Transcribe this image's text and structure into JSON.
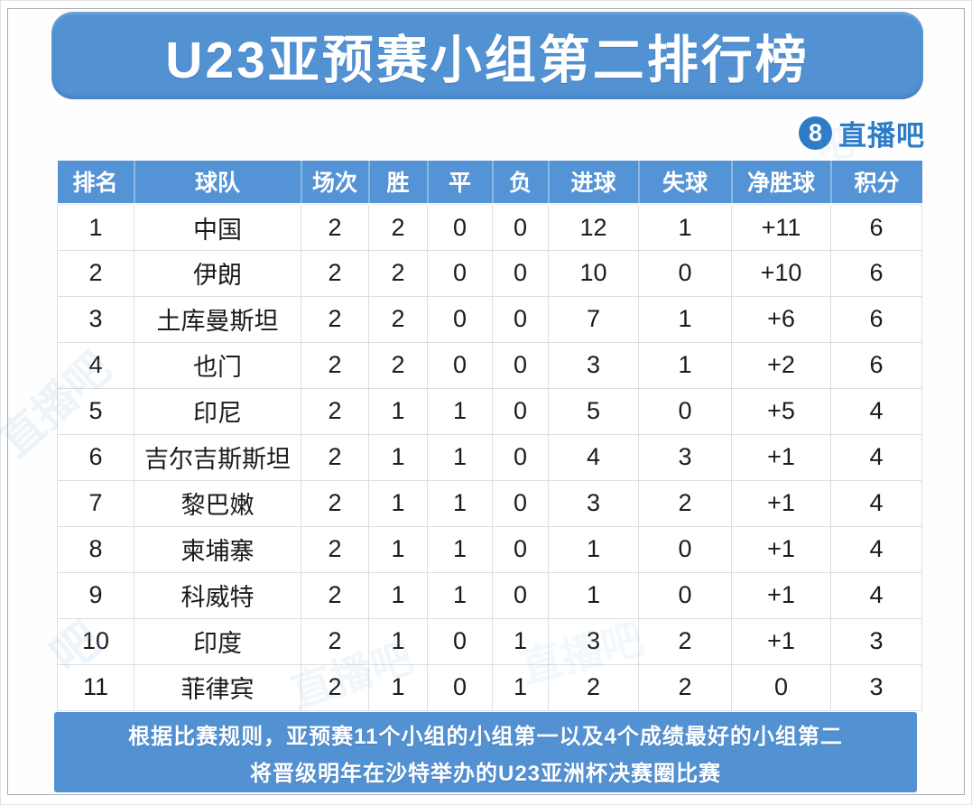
{
  "title": "U23亚预赛小组第二排行榜",
  "logo": {
    "badge": "8",
    "name": "直播吧"
  },
  "table": {
    "columns": [
      "排名",
      "球队",
      "场次",
      "胜",
      "平",
      "负",
      "进球",
      "失球",
      "净胜球",
      "积分"
    ],
    "rows": [
      {
        "rank": "1",
        "team": "中国",
        "played": "2",
        "win": "2",
        "draw": "0",
        "loss": "0",
        "gf": "12",
        "ga": "1",
        "gd": "+11",
        "pts": "6"
      },
      {
        "rank": "2",
        "team": "伊朗",
        "played": "2",
        "win": "2",
        "draw": "0",
        "loss": "0",
        "gf": "10",
        "ga": "0",
        "gd": "+10",
        "pts": "6"
      },
      {
        "rank": "3",
        "team": "土库曼斯坦",
        "played": "2",
        "win": "2",
        "draw": "0",
        "loss": "0",
        "gf": "7",
        "ga": "1",
        "gd": "+6",
        "pts": "6"
      },
      {
        "rank": "4",
        "team": "也门",
        "played": "2",
        "win": "2",
        "draw": "0",
        "loss": "0",
        "gf": "3",
        "ga": "1",
        "gd": "+2",
        "pts": "6"
      },
      {
        "rank": "5",
        "team": "印尼",
        "played": "2",
        "win": "1",
        "draw": "1",
        "loss": "0",
        "gf": "5",
        "ga": "0",
        "gd": "+5",
        "pts": "4"
      },
      {
        "rank": "6",
        "team": "吉尔吉斯斯坦",
        "played": "2",
        "win": "1",
        "draw": "1",
        "loss": "0",
        "gf": "4",
        "ga": "3",
        "gd": "+1",
        "pts": "4"
      },
      {
        "rank": "7",
        "team": "黎巴嫩",
        "played": "2",
        "win": "1",
        "draw": "1",
        "loss": "0",
        "gf": "3",
        "ga": "2",
        "gd": "+1",
        "pts": "4"
      },
      {
        "rank": "8",
        "team": "柬埔寨",
        "played": "2",
        "win": "1",
        "draw": "1",
        "loss": "0",
        "gf": "1",
        "ga": "0",
        "gd": "+1",
        "pts": "4"
      },
      {
        "rank": "9",
        "team": "科威特",
        "played": "2",
        "win": "1",
        "draw": "1",
        "loss": "0",
        "gf": "1",
        "ga": "0",
        "gd": "+1",
        "pts": "4"
      },
      {
        "rank": "10",
        "team": "印度",
        "played": "2",
        "win": "1",
        "draw": "0",
        "loss": "1",
        "gf": "3",
        "ga": "2",
        "gd": "+1",
        "pts": "3"
      },
      {
        "rank": "11",
        "team": "菲律宾",
        "played": "2",
        "win": "1",
        "draw": "0",
        "loss": "1",
        "gf": "2",
        "ga": "2",
        "gd": "0",
        "pts": "3"
      }
    ]
  },
  "footer": {
    "line1": "根据比赛规则，亚预赛11个小组的小组第一以及4个成绩最好的小组第二",
    "line2": "将晋级明年在沙特举办的U23亚洲杯决赛圈比赛"
  },
  "colors": {
    "banner_blue": "#5291d2",
    "header_blue": "#5494d6",
    "logo_blue": "#2d7cc5",
    "text_dark": "#1b1b1b"
  },
  "chart_data": {
    "type": "table",
    "title": "U23亚预赛小组第二排行榜",
    "columns": [
      "排名",
      "球队",
      "场次",
      "胜",
      "平",
      "负",
      "进球",
      "失球",
      "净胜球",
      "积分"
    ],
    "rows": [
      [
        1,
        "中国",
        2,
        2,
        0,
        0,
        12,
        1,
        "+11",
        6
      ],
      [
        2,
        "伊朗",
        2,
        2,
        0,
        0,
        10,
        0,
        "+10",
        6
      ],
      [
        3,
        "土库曼斯坦",
        2,
        2,
        0,
        0,
        7,
        1,
        "+6",
        6
      ],
      [
        4,
        "也门",
        2,
        2,
        0,
        0,
        3,
        1,
        "+2",
        6
      ],
      [
        5,
        "印尼",
        2,
        1,
        1,
        0,
        5,
        0,
        "+5",
        4
      ],
      [
        6,
        "吉尔吉斯斯坦",
        2,
        1,
        1,
        0,
        4,
        3,
        "+1",
        4
      ],
      [
        7,
        "黎巴嫩",
        2,
        1,
        1,
        0,
        3,
        2,
        "+1",
        4
      ],
      [
        8,
        "柬埔寨",
        2,
        1,
        1,
        0,
        1,
        0,
        "+1",
        4
      ],
      [
        9,
        "科威特",
        2,
        1,
        1,
        0,
        1,
        0,
        "+1",
        4
      ],
      [
        10,
        "印度",
        2,
        1,
        0,
        1,
        3,
        2,
        "+1",
        3
      ],
      [
        11,
        "菲律宾",
        2,
        1,
        0,
        1,
        2,
        2,
        "0",
        3
      ]
    ],
    "annotations": [
      "根据比赛规则，亚预赛11个小组的小组第一以及4个成绩最好的小组第二",
      "将晋级明年在沙特举办的U23亚洲杯决赛圈比赛"
    ],
    "legend_position": "none",
    "grid": true
  }
}
